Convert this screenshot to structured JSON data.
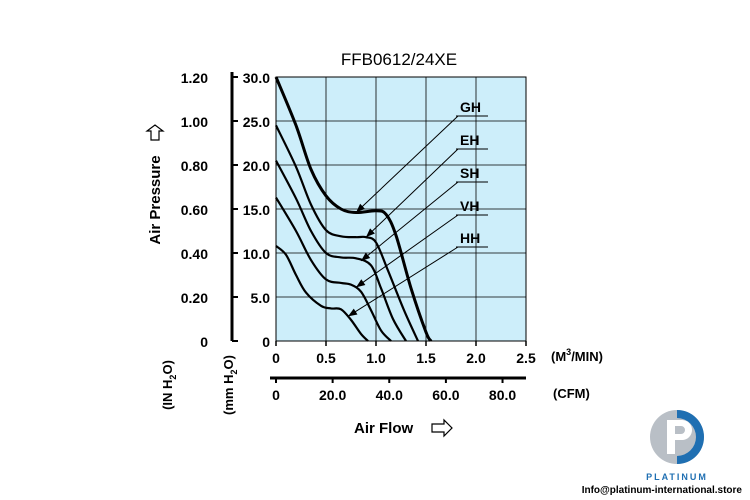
{
  "chart_data": {
    "type": "line",
    "title": "FFB0612/24XE",
    "x_axis_primary": {
      "label": "(M3/MIN)",
      "label_main": "(M",
      "label_sup": "3",
      "label_rest": "/MIN)",
      "range": [
        0,
        2.5
      ],
      "ticks": [
        "0",
        "0.5",
        "1.0",
        "1.5",
        "2.0",
        "2.5"
      ],
      "tick_values": [
        0,
        0.5,
        1.0,
        1.5,
        2.0,
        2.5
      ]
    },
    "x_axis_secondary": {
      "label": "(CFM)",
      "ticks": [
        "0",
        "20.0",
        "40.0",
        "60.0",
        "80.0"
      ],
      "tick_values": [
        0,
        20,
        40,
        60,
        80
      ]
    },
    "x_title": "Air Flow",
    "y_axis_mm": {
      "unit_main": "(mm H",
      "unit_sub": "2",
      "unit_rest": "O)",
      "range": [
        0,
        30
      ],
      "ticks": [
        "0",
        "5.0",
        "10.0",
        "15.0",
        "20.0",
        "25.0",
        "30.0"
      ],
      "tick_values": [
        0,
        5,
        10,
        15,
        20,
        25,
        30
      ]
    },
    "y_axis_in": {
      "unit_main": "(IN H",
      "unit_sub": "2",
      "unit_rest": "O)",
      "ticks": [
        "0",
        "0.20",
        "0.40",
        "0.60",
        "0.80",
        "1.00",
        "1.20"
      ],
      "tick_values": [
        0,
        0.2,
        0.4,
        0.6,
        0.8,
        1.0,
        1.2
      ]
    },
    "y_title": "Air Pressure",
    "grid": true,
    "series": [
      {
        "name": "GH",
        "points": [
          [
            0,
            30.0
          ],
          [
            0.2,
            24.5
          ],
          [
            0.35,
            19.5
          ],
          [
            0.5,
            16.5
          ],
          [
            0.65,
            15.0
          ],
          [
            0.8,
            14.6
          ],
          [
            1.0,
            14.8
          ],
          [
            1.1,
            14.4
          ],
          [
            1.2,
            12.0
          ],
          [
            1.35,
            6.0
          ],
          [
            1.5,
            1.0
          ],
          [
            1.55,
            0
          ]
        ]
      },
      {
        "name": "EH",
        "points": [
          [
            0,
            24.5
          ],
          [
            0.2,
            19.8
          ],
          [
            0.35,
            15.5
          ],
          [
            0.5,
            12.6
          ],
          [
            0.65,
            11.9
          ],
          [
            0.8,
            11.8
          ],
          [
            0.9,
            11.8
          ],
          [
            1.0,
            11.2
          ],
          [
            1.12,
            8.0
          ],
          [
            1.28,
            3.5
          ],
          [
            1.42,
            0
          ]
        ]
      },
      {
        "name": "SH",
        "points": [
          [
            0,
            20.5
          ],
          [
            0.2,
            16.2
          ],
          [
            0.35,
            12.5
          ],
          [
            0.5,
            10.0
          ],
          [
            0.65,
            9.5
          ],
          [
            0.8,
            9.4
          ],
          [
            0.95,
            8.6
          ],
          [
            1.05,
            6.0
          ],
          [
            1.17,
            2.5
          ],
          [
            1.3,
            0
          ]
        ]
      },
      {
        "name": "VH",
        "points": [
          [
            0,
            16.3
          ],
          [
            0.2,
            12.5
          ],
          [
            0.35,
            9.2
          ],
          [
            0.5,
            7.0
          ],
          [
            0.65,
            6.6
          ],
          [
            0.75,
            6.4
          ],
          [
            0.85,
            5.6
          ],
          [
            0.95,
            3.5
          ],
          [
            1.05,
            1.2
          ],
          [
            1.15,
            0
          ]
        ]
      },
      {
        "name": "HH",
        "points": [
          [
            0,
            10.8
          ],
          [
            0.1,
            9.8
          ],
          [
            0.2,
            7.5
          ],
          [
            0.3,
            5.5
          ],
          [
            0.45,
            4.0
          ],
          [
            0.55,
            3.7
          ],
          [
            0.65,
            3.6
          ],
          [
            0.75,
            2.4
          ],
          [
            0.85,
            0.8
          ],
          [
            0.92,
            0
          ]
        ]
      }
    ],
    "annotations": [
      {
        "text": "GH",
        "series": "GH",
        "point": [
          0.8,
          14.6
        ]
      },
      {
        "text": "EH",
        "series": "EH",
        "point": [
          0.9,
          11.8
        ]
      },
      {
        "text": "SH",
        "series": "SH",
        "point": [
          0.85,
          9.1
        ]
      },
      {
        "text": "VH",
        "series": "VH",
        "point": [
          0.8,
          6.1
        ]
      },
      {
        "text": "HH",
        "series": "HH",
        "point": [
          0.72,
          2.8
        ]
      }
    ]
  },
  "brand": {
    "name": "PLATINUM",
    "email": "Info@platinum-international.store",
    "colors": {
      "blue": "#1f6fb2",
      "grey": "#b9bfc6"
    }
  },
  "colors": {
    "plot_bg": "#cdeefa",
    "grid": "#000000",
    "line": "#000000"
  }
}
